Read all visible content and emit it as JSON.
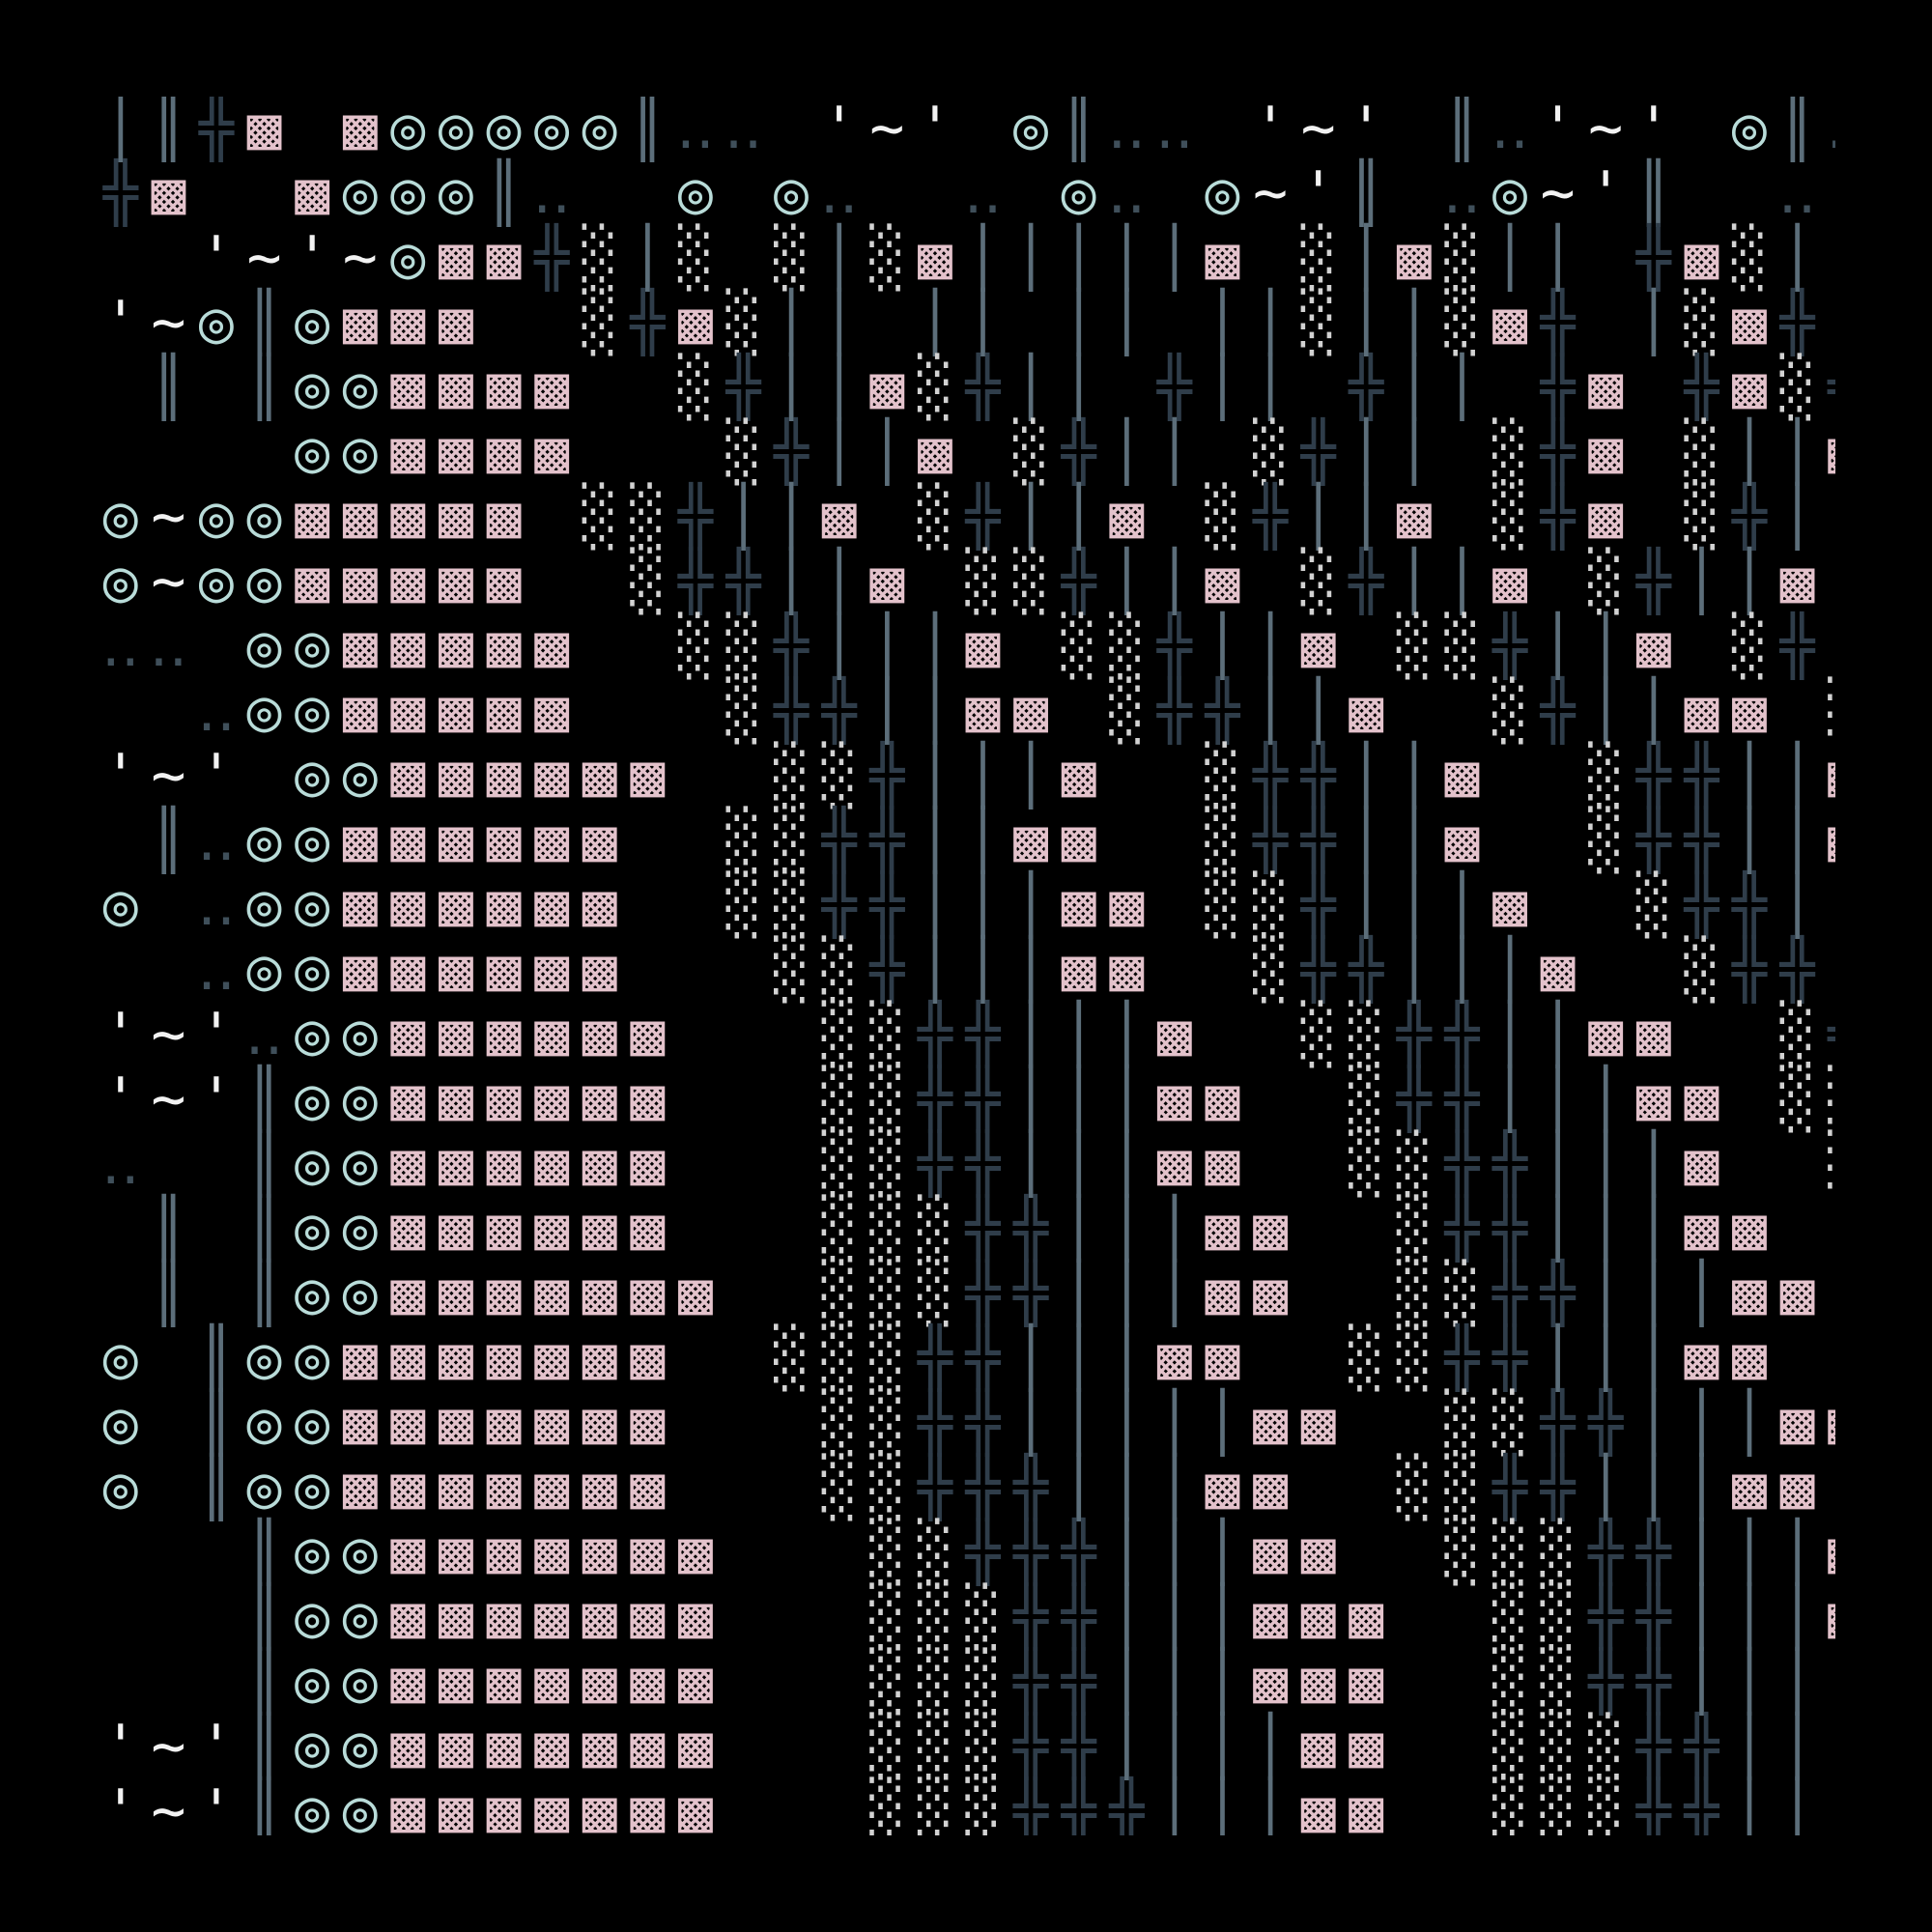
{
  "palette": {
    "background": "#000000",
    "rings": "#b9dcd9",
    "blocks": "#e3c2cb",
    "stipple": "#d2d2d2",
    "crosses": "#2f3d4a",
    "bars": "#5c6e7a",
    "marks": "#f2f2f2",
    "dots": "#3f4f5a"
  },
  "glyphs": {
    "ring": "◎",
    "block": "▩",
    "stipple": "░",
    "cross": "╬",
    "bar": "│",
    "double_bar": "║",
    "tilde": "~",
    "quote": "'",
    "dots": "‥"
  },
  "rows": [
    "│║╬▩ ▩◎◎◎◎◎║‥‥ '~' ◎║‥‥ '~' ║‥'~' ◎║‥'~' ◎║‥'~◎║‥'",
    "╬▩  ▩◎◎◎║‥  ◎ ◎‥  ‥ ◎‥ ◎~'║ ‥◎~'║  ‥ ║ ‥ ◎~'║  ‥",
    "  '~'~◎▩▩╬░│░ ░│░▩│││││▩ ░│▩░││ ╬▩░│ ╬▩░│",
    "'~◎║◎▩▩▩  ░╬▩░││ ││ ││ ││░││░▩╬ │░▩╬ │░▩╬  ╬",
    " ║ ║◎◎▩▩▩▩  ░╬││▩░╬││ ╬││ ╬││ ╬▩ ╬▩░╬▩░││ ░│",
    "    ◎◎▩▩▩▩   ░╬││▩ ░╬││ ░╬││ ░╬▩ ░││▩ ╬││ ░╬▩",
    "◎~◎◎▩▩▩▩▩ ░░╬││▩ ░╬││▩ ░╬││▩ ░╬▩ ░╬││▩ ░",
    "◎~◎◎▩▩▩▩▩  ░╬╬││▩ ░░╬││▩ ░╬││▩ ░╬││▩ ░╬││▩",
    "‥‥ ◎◎▩▩▩▩▩  ░░╬│││▩ ░░╬││▩ ░░╬││▩ ░╬│││▩",
    "  ‥◎◎▩▩▩▩▩   ░╬╬││▩▩ ░╬╬││▩  ░╬││▩▩ ░╬│││",
    "'~' ◎◎▩▩▩▩▩▩  ░░╬│││▩  ░╬╬││▩  ░╬╬││▩  ░╬",
    " ║‥◎◎▩▩▩▩▩▩  ░░╬╬││▩▩  ░╬╬││▩  ░╬╬││▩▩  ░",
    "◎ ‥◎◎▩▩▩▩▩▩  ░░╬╬│││▩▩ ░░╬│││▩  ░╬╬││▩▩",
    "  ‥◎◎▩▩▩▩▩▩   ░░╬│││▩▩  ░╬╬│││▩  ░╬╬│││▩",
    "'~'‥◎◎▩▩▩▩▩▩   ░░╬╬│││▩  ░░╬╬││▩▩  ░╬╬│││",
    "'~'║◎◎▩▩▩▩▩▩   ░░╬╬│││▩▩  ░╬╬│││▩▩ ░░╬╬││",
    "‥  ║◎◎▩▩▩▩▩▩   ░░╬╬│││▩▩  ░░╬╬│││▩  ░░╬╬│",
    " ║ ║◎◎▩▩▩▩▩▩   ░░░╬╬│││▩▩  ░╬╬│││▩▩  ░░╬",
    " ║ ║◎◎▩▩▩▩▩▩▩  ░░░╬╬│││▩▩  ░░╬╬│││▩▩  ░░",
    "◎ ║◎◎▩▩▩▩▩▩▩  ░░░╬╬│││▩▩  ░░╬╬│││▩▩  ░░",
    "◎ ║◎◎▩▩▩▩▩▩▩   ░░╬╬│││││▩▩  ░░╬╬│││▩▩  ░",
    "◎ ║◎◎▩▩▩▩▩▩▩   ░░╬╬╬│││▩▩  ░░╬╬│││▩▩  ░",
    "   ║◎◎▩▩▩▩▩▩▩   ░░╬╬╬│││▩▩  ░░░╬╬│││▩▩",
    "   ║◎◎▩▩▩▩▩▩▩   ░░░╬╬│││▩▩▩  ░░╬╬│││▩▩",
    "   ║◎◎▩▩▩▩▩▩▩   ░░░╬╬│││▩▩▩  ░░╬╬││││▩▩",
    "'~'║◎◎▩▩▩▩▩▩▩   ░░░╬╬││││▩▩  ░░░╬╬│││▩▩",
    "'~'║◎◎▩▩▩▩▩▩▩   ░░░╬╬╬│││▩▩  ░░░╬╬│││▩▩▩"
  ]
}
